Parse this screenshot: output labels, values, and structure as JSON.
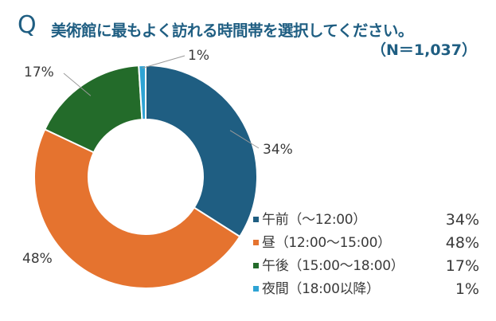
{
  "header": {
    "q_mark": "Q",
    "title": "美術館に最もよく訪れる時間帯を選択してください。",
    "subtitle": "（N＝1,037）"
  },
  "chart_data": {
    "type": "pie",
    "style": "donut",
    "title": "美術館に最もよく訪れる時間帯を選択してください。",
    "subtitle": "（N＝1,037）",
    "categories": [
      "午前（～12:00）",
      "昼（12:00～15:00）",
      "午後（15:00～18:00）",
      "夜間（18:00以降）"
    ],
    "values": [
      34,
      48,
      17,
      1
    ],
    "labels": [
      "34%",
      "48%",
      "17%",
      "1%"
    ],
    "colors": [
      "#1f5e82",
      "#e5732f",
      "#236b2a",
      "#2ea3d4"
    ],
    "legend_position": "bottom-right"
  },
  "legend": [
    {
      "label": "午前（～12:00）",
      "pct": "34%",
      "color": "#1f5e82"
    },
    {
      "label": "昼（12:00～15:00）",
      "pct": "48%",
      "color": "#e5732f"
    },
    {
      "label": "午後（15:00～18:00）",
      "pct": "17%",
      "color": "#236b2a"
    },
    {
      "label": "夜間（18:00以降）",
      "pct": "1%",
      "color": "#2ea3d4"
    }
  ]
}
